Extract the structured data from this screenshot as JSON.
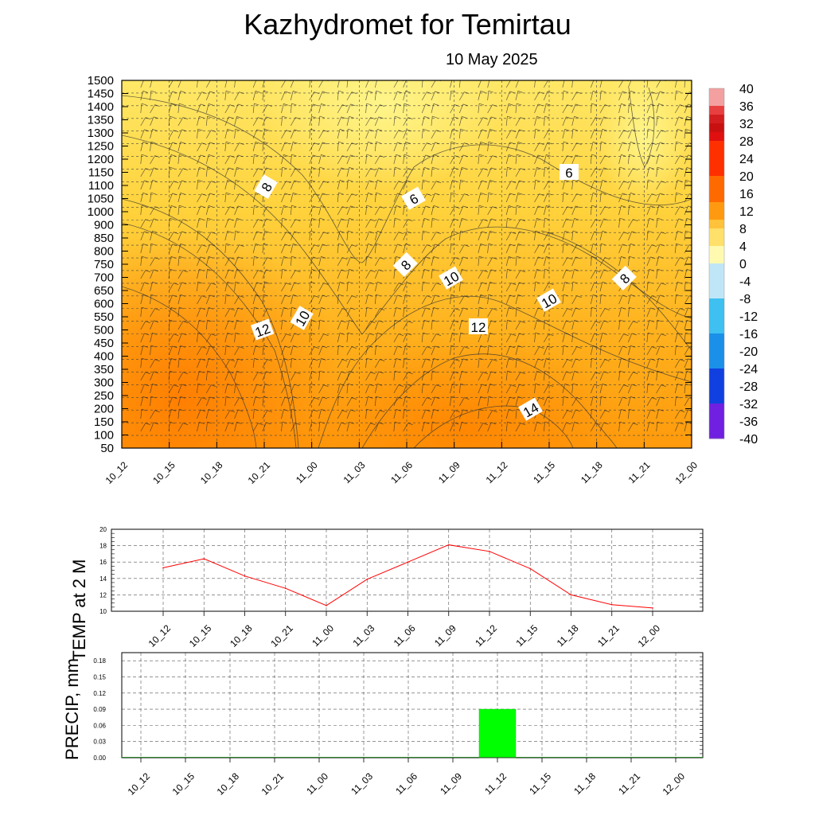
{
  "header": {
    "title": "Kazhydromet  for Temirtau",
    "date": "10 May 2025"
  },
  "colors": {
    "temp_line": "#ff0000",
    "precip_bar": "#00ff00",
    "warm_low": "#ffef73",
    "warm_high": "#ff8c00"
  },
  "chart_data": [
    {
      "type": "heatmap",
      "title": "",
      "x": [
        "10_12",
        "10_15",
        "10_18",
        "10_21",
        "11_00",
        "11_03",
        "11_06",
        "11_09",
        "11_12",
        "11_15",
        "11_18",
        "11_21",
        "12_00"
      ],
      "y_levels": [
        1500,
        1450,
        1400,
        1350,
        1300,
        1250,
        1200,
        1150,
        1100,
        1050,
        1000,
        950,
        900,
        850,
        800,
        750,
        700,
        650,
        600,
        550,
        500,
        450,
        400,
        350,
        300,
        250,
        200,
        150,
        100,
        50
      ],
      "y_tick_labels": [
        "1500",
        "1450",
        "1400",
        "1350",
        "1300",
        "1250",
        "1200",
        "1150",
        "1100",
        "1050",
        "1000",
        "900",
        "850",
        "800",
        "750",
        "700",
        "650",
        "600",
        "550",
        "500",
        "450",
        "400",
        "350",
        "300",
        "250",
        "200",
        "150",
        "100",
        "50"
      ],
      "contour_labels": [
        "8",
        "6",
        "6",
        "8",
        "10",
        "10",
        "8",
        "12",
        "12",
        "10",
        "14"
      ],
      "colorbar_ticks": [
        "40",
        "36",
        "32",
        "28",
        "24",
        "20",
        "16",
        "12",
        "8",
        "4",
        "0",
        "-4",
        "-8",
        "-12",
        "-16",
        "-20",
        "-24",
        "-28",
        "-32",
        "-36",
        "-40"
      ],
      "colorbar_range": [
        -40,
        40
      ],
      "grid": true,
      "overlay": "wind barbs"
    },
    {
      "type": "line",
      "ylabel": "TEMP at 2 M",
      "x": [
        "10_12",
        "10_15",
        "10_18",
        "10_21",
        "11_00",
        "11_03",
        "11_06",
        "11_09",
        "11_12",
        "11_15",
        "11_18",
        "11_21",
        "12_00"
      ],
      "values": [
        15.3,
        16.4,
        14.3,
        12.8,
        10.7,
        13.9,
        16.0,
        18.1,
        17.3,
        15.2,
        12.0,
        10.8,
        10.4
      ],
      "ylim": [
        10,
        20
      ],
      "yticks": [
        "10",
        "12",
        "14",
        "16",
        "18",
        "20"
      ],
      "grid": true
    },
    {
      "type": "bar",
      "ylabel": "PRECIP, mm",
      "x": [
        "10_12",
        "10_15",
        "10_18",
        "10_21",
        "11_00",
        "11_03",
        "11_06",
        "11_09",
        "11_12",
        "11_15",
        "11_18",
        "11_21",
        "12_00"
      ],
      "values": [
        0,
        0,
        0,
        0,
        0,
        0,
        0,
        0,
        0.09,
        0,
        0,
        0,
        0
      ],
      "ylim": [
        0,
        0.195
      ],
      "yticks": [
        "0.00",
        "0.03",
        "0.06",
        "0.09",
        "0.12",
        "0.15",
        "0.18"
      ],
      "grid": true
    }
  ]
}
